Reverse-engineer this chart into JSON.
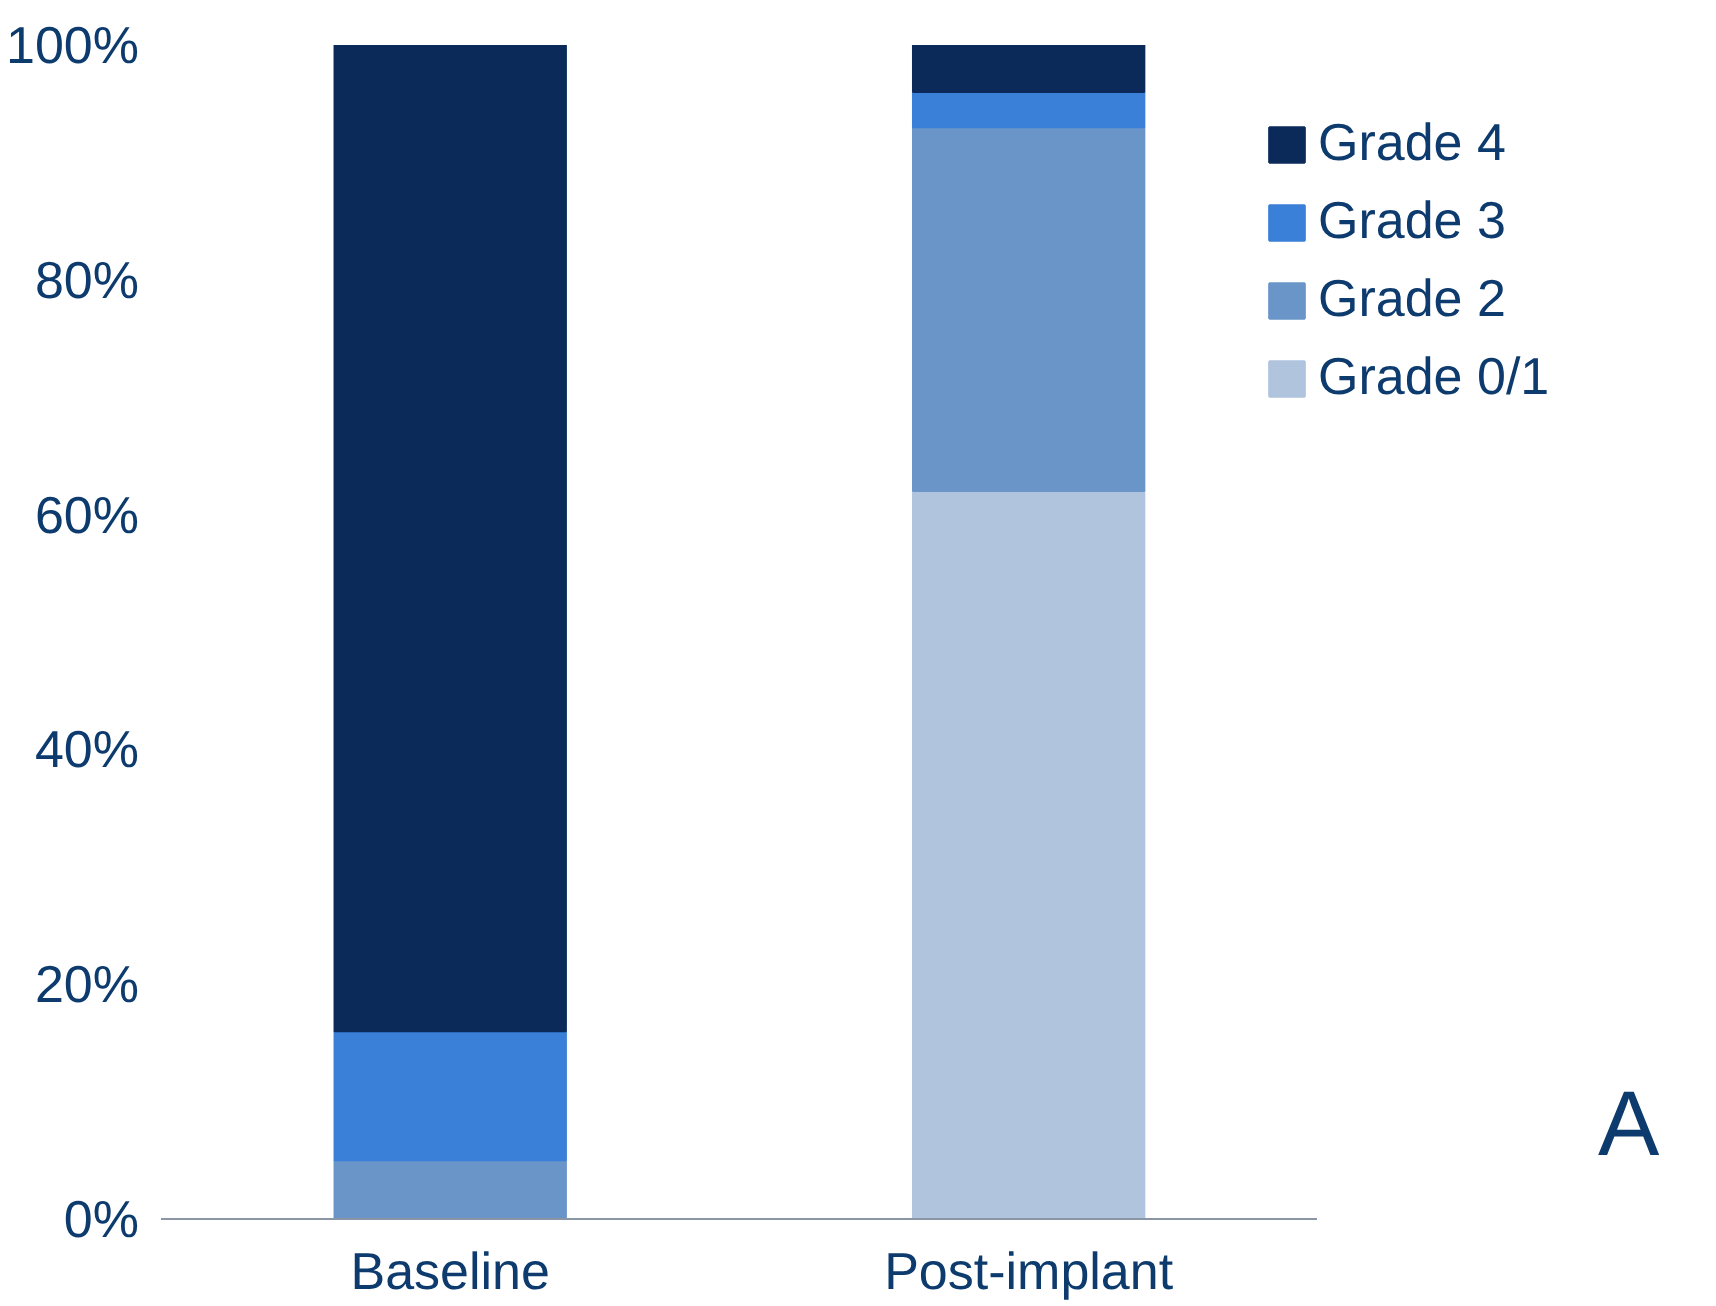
{
  "chart_data": {
    "type": "bar",
    "stacked": true,
    "categories": [
      "Baseline",
      "Post-implant"
    ],
    "series": [
      {
        "name": "Grade 0/1",
        "color": "#b0c4de",
        "values": [
          0,
          62
        ]
      },
      {
        "name": "Grade 2",
        "color": "#6a95c8",
        "values": [
          5,
          31
        ]
      },
      {
        "name": "Grade 3",
        "color": "#3a7fd8",
        "values": [
          11,
          3
        ]
      },
      {
        "name": "Grade 4",
        "color": "#0b2a5a",
        "values": [
          84,
          4
        ]
      }
    ],
    "ylim": [
      0,
      100
    ],
    "yticks": [
      {
        "value": 0,
        "label": "0%"
      },
      {
        "value": 20,
        "label": "20%"
      },
      {
        "value": 40,
        "label": "40%"
      },
      {
        "value": 60,
        "label": "60%"
      },
      {
        "value": 80,
        "label": "80%"
      },
      {
        "value": 100,
        "label": "100%"
      }
    ],
    "grid": false,
    "legend": "top right",
    "annotations": [
      "A"
    ]
  }
}
